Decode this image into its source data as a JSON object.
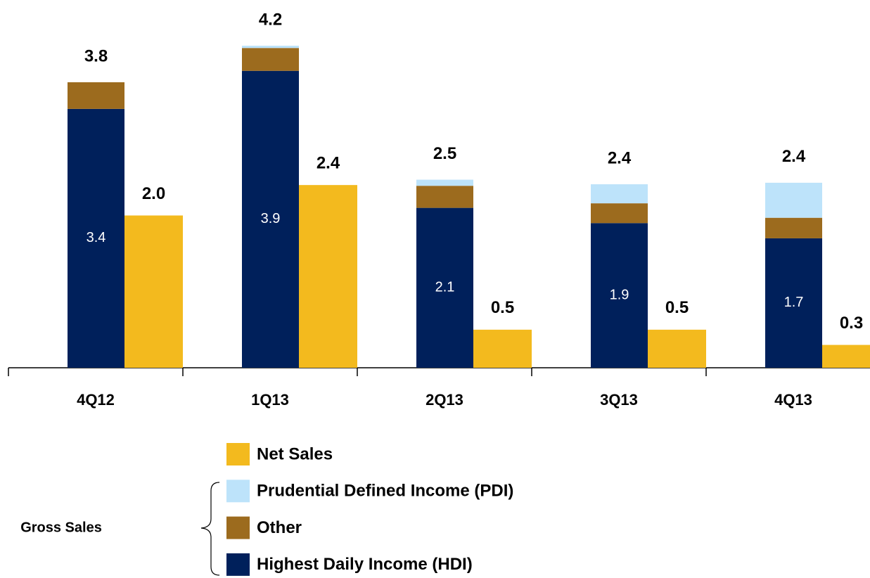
{
  "chart_data": {
    "type": "bar",
    "categories": [
      "4Q12",
      "1Q13",
      "2Q13",
      "3Q13",
      "4Q13"
    ],
    "net": {
      "name": "Net Sales",
      "color": "#f3ba1e",
      "values": [
        2.0,
        2.4,
        0.5,
        0.5,
        0.3
      ],
      "value_labels": [
        "2.0",
        "2.4",
        "0.5",
        "0.5",
        "0.3"
      ]
    },
    "gross": {
      "label": "Gross Sales",
      "totals": [
        3.8,
        4.2,
        2.5,
        2.4,
        2.4
      ],
      "series": [
        {
          "name": "Highest Daily Income (HDI)",
          "color": "#00205b",
          "values": [
            3.4,
            3.9,
            2.1,
            1.9,
            1.7
          ]
        },
        {
          "name": "Other",
          "color": "#9c6b1e",
          "values": [
            0.35,
            0.3,
            0.29,
            0.26,
            0.27
          ]
        },
        {
          "name": "Prudential Defined Income (PDI)",
          "color": "#bde3fa",
          "values": [
            0,
            0.03,
            0.08,
            0.25,
            0.46
          ]
        }
      ]
    }
  }
}
